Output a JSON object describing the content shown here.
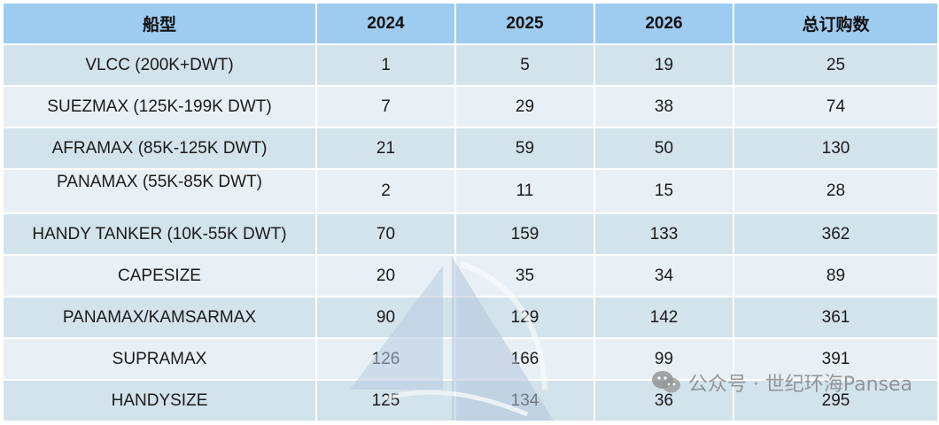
{
  "table": {
    "headers": [
      "船型",
      "2024",
      "2025",
      "2026",
      "总订购数"
    ],
    "rows": [
      [
        "VLCC (200K+DWT)",
        "1",
        "5",
        "19",
        "25"
      ],
      [
        "SUEZMAX (125K-199K DWT)",
        "7",
        "29",
        "38",
        "74"
      ],
      [
        "AFRAMAX (85K-125K DWT)",
        "21",
        "59",
        "50",
        "130"
      ],
      [
        "PANAMAX (55K-85K DWT)",
        "2",
        "11",
        "15",
        "28"
      ],
      [
        "HANDY TANKER (10K-55K DWT)",
        "70",
        "159",
        "133",
        "362"
      ],
      [
        "CAPESIZE",
        "20",
        "35",
        "34",
        "89"
      ],
      [
        "PANAMAX/KAMSARMAX",
        "90",
        "129",
        "142",
        "361"
      ],
      [
        "SUPRAMAX",
        "126",
        "166",
        "99",
        "391"
      ],
      [
        "HANDYSIZE",
        "125",
        "134",
        "36",
        "295"
      ]
    ]
  },
  "colors": {
    "header_bg": "#9ecbf0",
    "row_dark": "#d3e3ec",
    "row_light": "#e9f0f5"
  },
  "watermark": {
    "text": "公众号 · 世纪环海Pansea",
    "icon": "wechat-icon"
  }
}
